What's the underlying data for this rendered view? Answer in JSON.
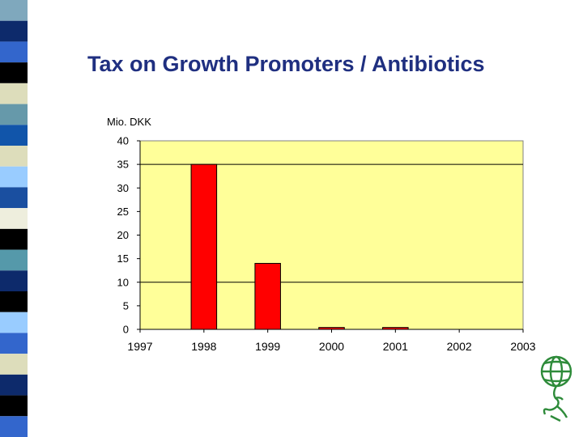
{
  "slide": {
    "title": "Tax on Growth Promoters / Antibiotics"
  },
  "decor": {
    "stripe_colors": [
      "#7fa8bd",
      "#0d2a6b",
      "#3366cc",
      "#000000",
      "#ddddbb",
      "#6699aa",
      "#1155aa",
      "#ddddbb",
      "#99ccff",
      "#1a4fa0",
      "#eeeedd",
      "#000000",
      "#5599aa",
      "#0d2a6b",
      "#000000",
      "#99ccff",
      "#3366cc",
      "#ddddbb",
      "#0d2a6b",
      "#000000",
      "#3366cc"
    ],
    "logo_icon": "globe-figure-icon",
    "logo_color": "#2e8b3a"
  },
  "chart_data": {
    "type": "bar",
    "ylabel": "Mio. DKK",
    "xlabel": "",
    "categories": [
      "1997",
      "1998",
      "1999",
      "2000",
      "2001",
      "2002",
      "2003"
    ],
    "x_ticks": [
      "1997",
      "1998",
      "1999",
      "2000",
      "2001",
      "2002",
      "2003"
    ],
    "y_ticks": [
      "40",
      "35",
      "30",
      "25",
      "20",
      "15",
      "10",
      "5",
      "0"
    ],
    "values": [
      0,
      35,
      14,
      0.4,
      0.4,
      0,
      0
    ],
    "ylim": [
      0,
      40
    ],
    "gridlines_at": [
      35,
      10
    ],
    "bar_color": "#ff0000",
    "plot_background": "#ffff99",
    "legend": "none"
  }
}
